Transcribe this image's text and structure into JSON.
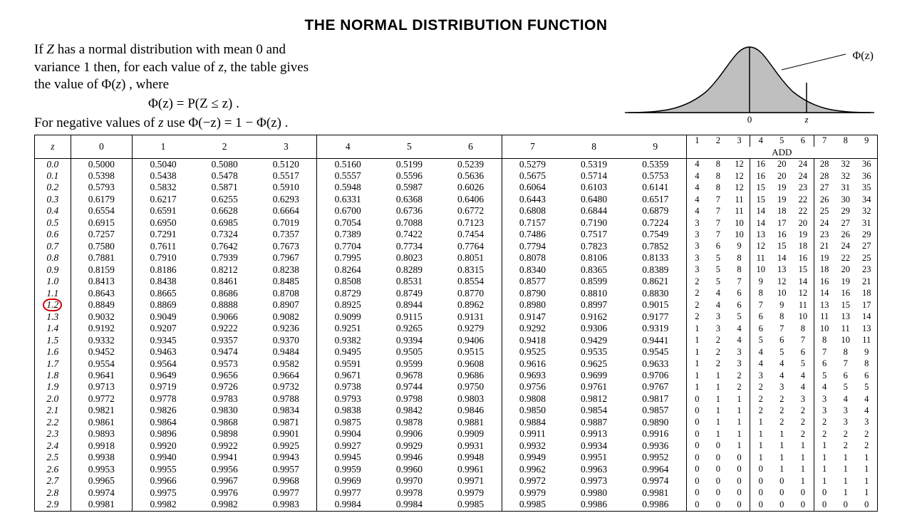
{
  "title": "THE NORMAL DISTRIBUTION FUNCTION",
  "intro": {
    "line1_a": "If ",
    "line1_z": "Z",
    "line1_b": " has a normal distribution with mean 0 and",
    "line2_a": "variance 1 then, for each value of ",
    "line2_z": "z",
    "line2_b": ", the table gives",
    "line3_a": "the value of Φ(",
    "line3_z": "z",
    "line3_b": ") , where",
    "formula": "Φ(z) = P(Z ≤ z) .",
    "neg_a": "For negative values of ",
    "neg_z": "z",
    "neg_b": " use  Φ(−z) = 1 − Φ(z) ."
  },
  "curve": {
    "fill": "#bfbfbf",
    "stroke": "#000000",
    "axis_zero": "0",
    "axis_z": "z",
    "phi_label": "Φ(z)"
  },
  "headers": {
    "z": "z",
    "main": [
      "0",
      "1",
      "2",
      "3",
      "4",
      "5",
      "6",
      "7",
      "8",
      "9"
    ],
    "add_top": [
      "1",
      "2",
      "3",
      "4",
      "5",
      "6",
      "7",
      "8",
      "9"
    ],
    "add_label": "ADD"
  },
  "highlight_row_z": "1.2",
  "main_vgroups": [
    1,
    4,
    7,
    10
  ],
  "add_vgroups": [
    3,
    6,
    9
  ],
  "rows": [
    {
      "z": "0.0",
      "v": [
        "0.5000",
        "0.5040",
        "0.5080",
        "0.5120",
        "0.5160",
        "0.5199",
        "0.5239",
        "0.5279",
        "0.5319",
        "0.5359"
      ],
      "a": [
        "4",
        "8",
        "12",
        "16",
        "20",
        "24",
        "28",
        "32",
        "36"
      ]
    },
    {
      "z": "0.1",
      "v": [
        "0.5398",
        "0.5438",
        "0.5478",
        "0.5517",
        "0.5557",
        "0.5596",
        "0.5636",
        "0.5675",
        "0.5714",
        "0.5753"
      ],
      "a": [
        "4",
        "8",
        "12",
        "16",
        "20",
        "24",
        "28",
        "32",
        "36"
      ]
    },
    {
      "z": "0.2",
      "v": [
        "0.5793",
        "0.5832",
        "0.5871",
        "0.5910",
        "0.5948",
        "0.5987",
        "0.6026",
        "0.6064",
        "0.6103",
        "0.6141"
      ],
      "a": [
        "4",
        "8",
        "12",
        "15",
        "19",
        "23",
        "27",
        "31",
        "35"
      ]
    },
    {
      "z": "0.3",
      "v": [
        "0.6179",
        "0.6217",
        "0.6255",
        "0.6293",
        "0.6331",
        "0.6368",
        "0.6406",
        "0.6443",
        "0.6480",
        "0.6517"
      ],
      "a": [
        "4",
        "7",
        "11",
        "15",
        "19",
        "22",
        "26",
        "30",
        "34"
      ]
    },
    {
      "z": "0.4",
      "v": [
        "0.6554",
        "0.6591",
        "0.6628",
        "0.6664",
        "0.6700",
        "0.6736",
        "0.6772",
        "0.6808",
        "0.6844",
        "0.6879"
      ],
      "a": [
        "4",
        "7",
        "11",
        "14",
        "18",
        "22",
        "25",
        "29",
        "32"
      ]
    },
    {
      "z": "0.5",
      "v": [
        "0.6915",
        "0.6950",
        "0.6985",
        "0.7019",
        "0.7054",
        "0.7088",
        "0.7123",
        "0.7157",
        "0.7190",
        "0.7224"
      ],
      "a": [
        "3",
        "7",
        "10",
        "14",
        "17",
        "20",
        "24",
        "27",
        "31"
      ]
    },
    {
      "z": "0.6",
      "v": [
        "0.7257",
        "0.7291",
        "0.7324",
        "0.7357",
        "0.7389",
        "0.7422",
        "0.7454",
        "0.7486",
        "0.7517",
        "0.7549"
      ],
      "a": [
        "3",
        "7",
        "10",
        "13",
        "16",
        "19",
        "23",
        "26",
        "29"
      ]
    },
    {
      "z": "0.7",
      "v": [
        "0.7580",
        "0.7611",
        "0.7642",
        "0.7673",
        "0.7704",
        "0.7734",
        "0.7764",
        "0.7794",
        "0.7823",
        "0.7852"
      ],
      "a": [
        "3",
        "6",
        "9",
        "12",
        "15",
        "18",
        "21",
        "24",
        "27"
      ]
    },
    {
      "z": "0.8",
      "v": [
        "0.7881",
        "0.7910",
        "0.7939",
        "0.7967",
        "0.7995",
        "0.8023",
        "0.8051",
        "0.8078",
        "0.8106",
        "0.8133"
      ],
      "a": [
        "3",
        "5",
        "8",
        "11",
        "14",
        "16",
        "19",
        "22",
        "25"
      ]
    },
    {
      "z": "0.9",
      "v": [
        "0.8159",
        "0.8186",
        "0.8212",
        "0.8238",
        "0.8264",
        "0.8289",
        "0.8315",
        "0.8340",
        "0.8365",
        "0.8389"
      ],
      "a": [
        "3",
        "5",
        "8",
        "10",
        "13",
        "15",
        "18",
        "20",
        "23"
      ]
    },
    {
      "z": "1.0",
      "v": [
        "0.8413",
        "0.8438",
        "0.8461",
        "0.8485",
        "0.8508",
        "0.8531",
        "0.8554",
        "0.8577",
        "0.8599",
        "0.8621"
      ],
      "a": [
        "2",
        "5",
        "7",
        "9",
        "12",
        "14",
        "16",
        "19",
        "21"
      ]
    },
    {
      "z": "1.1",
      "v": [
        "0.8643",
        "0.8665",
        "0.8686",
        "0.8708",
        "0.8729",
        "0.8749",
        "0.8770",
        "0.8790",
        "0.8810",
        "0.8830"
      ],
      "a": [
        "2",
        "4",
        "6",
        "8",
        "10",
        "12",
        "14",
        "16",
        "18"
      ]
    },
    {
      "z": "1.2",
      "v": [
        "0.8849",
        "0.8869",
        "0.8888",
        "0.8907",
        "0.8925",
        "0.8944",
        "0.8962",
        "0.8980",
        "0.8997",
        "0.9015"
      ],
      "a": [
        "2",
        "4",
        "6",
        "7",
        "9",
        "11",
        "13",
        "15",
        "17"
      ]
    },
    {
      "z": "1.3",
      "v": [
        "0.9032",
        "0.9049",
        "0.9066",
        "0.9082",
        "0.9099",
        "0.9115",
        "0.9131",
        "0.9147",
        "0.9162",
        "0.9177"
      ],
      "a": [
        "2",
        "3",
        "5",
        "6",
        "8",
        "10",
        "11",
        "13",
        "14"
      ]
    },
    {
      "z": "1.4",
      "v": [
        "0.9192",
        "0.9207",
        "0.9222",
        "0.9236",
        "0.9251",
        "0.9265",
        "0.9279",
        "0.9292",
        "0.9306",
        "0.9319"
      ],
      "a": [
        "1",
        "3",
        "4",
        "6",
        "7",
        "8",
        "10",
        "11",
        "13"
      ]
    },
    {
      "z": "1.5",
      "v": [
        "0.9332",
        "0.9345",
        "0.9357",
        "0.9370",
        "0.9382",
        "0.9394",
        "0.9406",
        "0.9418",
        "0.9429",
        "0.9441"
      ],
      "a": [
        "1",
        "2",
        "4",
        "5",
        "6",
        "7",
        "8",
        "10",
        "11"
      ]
    },
    {
      "z": "1.6",
      "v": [
        "0.9452",
        "0.9463",
        "0.9474",
        "0.9484",
        "0.9495",
        "0.9505",
        "0.9515",
        "0.9525",
        "0.9535",
        "0.9545"
      ],
      "a": [
        "1",
        "2",
        "3",
        "4",
        "5",
        "6",
        "7",
        "8",
        "9"
      ]
    },
    {
      "z": "1.7",
      "v": [
        "0.9554",
        "0.9564",
        "0.9573",
        "0.9582",
        "0.9591",
        "0.9599",
        "0.9608",
        "0.9616",
        "0.9625",
        "0.9633"
      ],
      "a": [
        "1",
        "2",
        "3",
        "4",
        "4",
        "5",
        "6",
        "7",
        "8"
      ]
    },
    {
      "z": "1.8",
      "v": [
        "0.9641",
        "0.9649",
        "0.9656",
        "0.9664",
        "0.9671",
        "0.9678",
        "0.9686",
        "0.9693",
        "0.9699",
        "0.9706"
      ],
      "a": [
        "1",
        "1",
        "2",
        "3",
        "4",
        "4",
        "5",
        "6",
        "6"
      ]
    },
    {
      "z": "1.9",
      "v": [
        "0.9713",
        "0.9719",
        "0.9726",
        "0.9732",
        "0.9738",
        "0.9744",
        "0.9750",
        "0.9756",
        "0.9761",
        "0.9767"
      ],
      "a": [
        "1",
        "1",
        "2",
        "2",
        "3",
        "4",
        "4",
        "5",
        "5"
      ]
    },
    {
      "z": "2.0",
      "v": [
        "0.9772",
        "0.9778",
        "0.9783",
        "0.9788",
        "0.9793",
        "0.9798",
        "0.9803",
        "0.9808",
        "0.9812",
        "0.9817"
      ],
      "a": [
        "0",
        "1",
        "1",
        "2",
        "2",
        "3",
        "3",
        "4",
        "4"
      ]
    },
    {
      "z": "2.1",
      "v": [
        "0.9821",
        "0.9826",
        "0.9830",
        "0.9834",
        "0.9838",
        "0.9842",
        "0.9846",
        "0.9850",
        "0.9854",
        "0.9857"
      ],
      "a": [
        "0",
        "1",
        "1",
        "2",
        "2",
        "2",
        "3",
        "3",
        "4"
      ]
    },
    {
      "z": "2.2",
      "v": [
        "0.9861",
        "0.9864",
        "0.9868",
        "0.9871",
        "0.9875",
        "0.9878",
        "0.9881",
        "0.9884",
        "0.9887",
        "0.9890"
      ],
      "a": [
        "0",
        "1",
        "1",
        "1",
        "2",
        "2",
        "2",
        "3",
        "3"
      ]
    },
    {
      "z": "2.3",
      "v": [
        "0.9893",
        "0.9896",
        "0.9898",
        "0.9901",
        "0.9904",
        "0.9906",
        "0.9909",
        "0.9911",
        "0.9913",
        "0.9916"
      ],
      "a": [
        "0",
        "1",
        "1",
        "1",
        "1",
        "2",
        "2",
        "2",
        "2"
      ]
    },
    {
      "z": "2.4",
      "v": [
        "0.9918",
        "0.9920",
        "0.9922",
        "0.9925",
        "0.9927",
        "0.9929",
        "0.9931",
        "0.9932",
        "0.9934",
        "0.9936"
      ],
      "a": [
        "0",
        "0",
        "1",
        "1",
        "1",
        "1",
        "1",
        "2",
        "2"
      ]
    },
    {
      "z": "2.5",
      "v": [
        "0.9938",
        "0.9940",
        "0.9941",
        "0.9943",
        "0.9945",
        "0.9946",
        "0.9948",
        "0.9949",
        "0.9951",
        "0.9952"
      ],
      "a": [
        "0",
        "0",
        "0",
        "1",
        "1",
        "1",
        "1",
        "1",
        "1"
      ]
    },
    {
      "z": "2.6",
      "v": [
        "0.9953",
        "0.9955",
        "0.9956",
        "0.9957",
        "0.9959",
        "0.9960",
        "0.9961",
        "0.9962",
        "0.9963",
        "0.9964"
      ],
      "a": [
        "0",
        "0",
        "0",
        "0",
        "1",
        "1",
        "1",
        "1",
        "1"
      ]
    },
    {
      "z": "2.7",
      "v": [
        "0.9965",
        "0.9966",
        "0.9967",
        "0.9968",
        "0.9969",
        "0.9970",
        "0.9971",
        "0.9972",
        "0.9973",
        "0.9974"
      ],
      "a": [
        "0",
        "0",
        "0",
        "0",
        "0",
        "1",
        "1",
        "1",
        "1"
      ]
    },
    {
      "z": "2.8",
      "v": [
        "0.9974",
        "0.9975",
        "0.9976",
        "0.9977",
        "0.9977",
        "0.9978",
        "0.9979",
        "0.9979",
        "0.9980",
        "0.9981"
      ],
      "a": [
        "0",
        "0",
        "0",
        "0",
        "0",
        "0",
        "0",
        "1",
        "1"
      ]
    },
    {
      "z": "2.9",
      "v": [
        "0.9981",
        "0.9982",
        "0.9982",
        "0.9983",
        "0.9984",
        "0.9984",
        "0.9985",
        "0.9985",
        "0.9986",
        "0.9986"
      ],
      "a": [
        "0",
        "0",
        "0",
        "0",
        "0",
        "0",
        "0",
        "0",
        "0"
      ]
    }
  ]
}
